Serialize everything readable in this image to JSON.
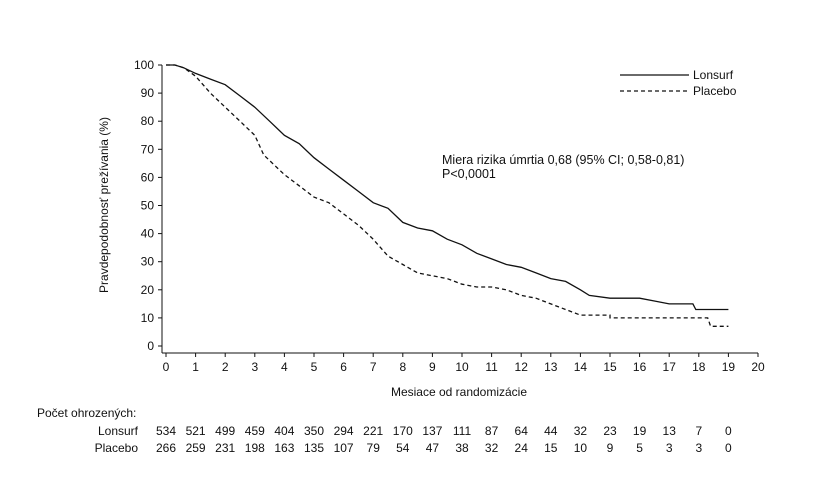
{
  "chart_data": {
    "type": "line",
    "title": "",
    "xlabel": "Mesiace od randomizácie",
    "ylabel": "Pravdepodobnosť prežívania (%)",
    "xlim": [
      0,
      20
    ],
    "ylim": [
      0,
      100
    ],
    "x_ticks": [
      0,
      1,
      2,
      3,
      4,
      5,
      6,
      7,
      8,
      9,
      10,
      11,
      12,
      13,
      14,
      15,
      16,
      17,
      18,
      19,
      20
    ],
    "y_ticks": [
      0,
      10,
      20,
      30,
      40,
      50,
      60,
      70,
      80,
      90,
      100
    ],
    "grid": false,
    "legend_position": "top-right",
    "series": [
      {
        "name": "Lonsurf",
        "style": "solid",
        "color": "#111111",
        "points": [
          [
            0,
            100
          ],
          [
            0.3,
            100
          ],
          [
            0.6,
            99
          ],
          [
            1,
            97
          ],
          [
            1.5,
            95
          ],
          [
            2,
            93
          ],
          [
            2.5,
            89
          ],
          [
            3,
            85
          ],
          [
            3.5,
            80
          ],
          [
            4,
            75
          ],
          [
            4.5,
            72
          ],
          [
            5,
            67
          ],
          [
            5.5,
            63
          ],
          [
            6,
            59
          ],
          [
            6.5,
            55
          ],
          [
            7,
            51
          ],
          [
            7.5,
            49
          ],
          [
            8,
            44
          ],
          [
            8.5,
            42
          ],
          [
            9,
            41
          ],
          [
            9.5,
            38
          ],
          [
            10,
            36
          ],
          [
            10.5,
            33
          ],
          [
            11,
            31
          ],
          [
            11.5,
            29
          ],
          [
            12,
            28
          ],
          [
            12.5,
            26
          ],
          [
            13,
            24
          ],
          [
            13.5,
            23
          ],
          [
            14,
            20
          ],
          [
            14.3,
            18
          ],
          [
            15,
            17
          ],
          [
            16,
            17
          ],
          [
            16.5,
            16
          ],
          [
            17,
            15
          ],
          [
            17.8,
            15
          ],
          [
            17.9,
            13
          ],
          [
            19,
            13
          ]
        ]
      },
      {
        "name": "Placebo",
        "style": "dashed",
        "color": "#111111",
        "points": [
          [
            0,
            100
          ],
          [
            0.3,
            100
          ],
          [
            0.6,
            99
          ],
          [
            1,
            96
          ],
          [
            1.5,
            90
          ],
          [
            2,
            85
          ],
          [
            2.5,
            80
          ],
          [
            3,
            75
          ],
          [
            3.3,
            68
          ],
          [
            3.7,
            64
          ],
          [
            4,
            61
          ],
          [
            4.5,
            57
          ],
          [
            5,
            53
          ],
          [
            5.5,
            51
          ],
          [
            6,
            47
          ],
          [
            6.5,
            43
          ],
          [
            7,
            38
          ],
          [
            7.5,
            32
          ],
          [
            8,
            29
          ],
          [
            8.5,
            26
          ],
          [
            9,
            25
          ],
          [
            9.5,
            24
          ],
          [
            10,
            22
          ],
          [
            10.5,
            21
          ],
          [
            11,
            21
          ],
          [
            11.5,
            20
          ],
          [
            12,
            18
          ],
          [
            12.5,
            17
          ],
          [
            13,
            15
          ],
          [
            13.5,
            13
          ],
          [
            14,
            11
          ],
          [
            15,
            11
          ],
          [
            15,
            10
          ],
          [
            17,
            10
          ],
          [
            18.3,
            10
          ],
          [
            18.4,
            7
          ],
          [
            19,
            7
          ]
        ]
      }
    ],
    "annotation": {
      "line1": "Miera rizika úmrtia 0,68 (95% CI; 0,58-0,81)",
      "line2": "P<0,0001"
    },
    "risk_table": {
      "title": "Počet ohrozených:",
      "timepoints": [
        0,
        1,
        2,
        3,
        4,
        5,
        6,
        7,
        8,
        9,
        10,
        11,
        12,
        13,
        14,
        15,
        16,
        17,
        18,
        19
      ],
      "rows": [
        {
          "label": "Lonsurf",
          "values": [
            534,
            521,
            499,
            459,
            404,
            350,
            294,
            221,
            170,
            137,
            111,
            87,
            64,
            44,
            32,
            23,
            19,
            13,
            7,
            0
          ]
        },
        {
          "label": "Placebo",
          "values": [
            266,
            259,
            231,
            198,
            163,
            135,
            107,
            79,
            54,
            47,
            38,
            32,
            24,
            15,
            10,
            9,
            5,
            3,
            3,
            0
          ]
        }
      ]
    }
  }
}
